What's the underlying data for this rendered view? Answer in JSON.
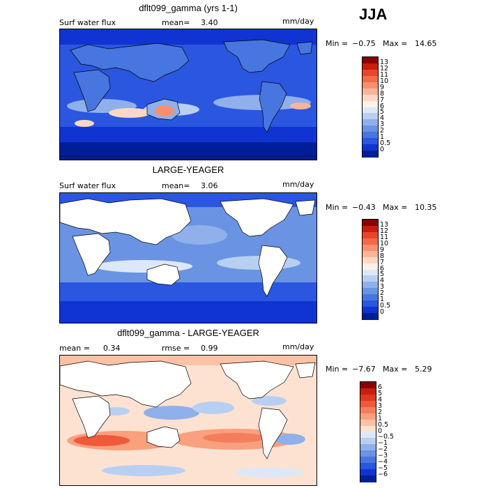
{
  "season": "JJA",
  "panels": [
    {
      "title": "dflt099_gamma (yrs 1-1)",
      "left_label": "Surf water flux",
      "mid_label": "mean=",
      "mid_value": "3.40",
      "units": "mm/day",
      "min_label": "Min =",
      "min_value": "−0.75",
      "max_label": "Max =",
      "max_value": "14.65",
      "map_fill": "ocean_and_land",
      "colorbar": {
        "labels": [
          "13",
          "12",
          "11",
          "10",
          "9",
          "8",
          "7",
          "6",
          "5",
          "4",
          "3",
          "2",
          "1",
          "0.5",
          "0"
        ],
        "colors": [
          "#8b0000",
          "#c81e10",
          "#e8462a",
          "#f26a4a",
          "#f89070",
          "#fbb596",
          "#fcd8c4",
          "#fff1e8",
          "#dce8f8",
          "#b8cff2",
          "#8fb0ea",
          "#6a93e4",
          "#4776e0",
          "#2a56e0",
          "#1034d2",
          "#001e96"
        ]
      }
    },
    {
      "title": "LARGE-YEAGER",
      "left_label": "Surf water flux",
      "mid_label": "mean=",
      "mid_value": "3.06",
      "units": "mm/day",
      "min_label": "Min =",
      "min_value": "−0.43",
      "max_label": "Max =",
      "max_value": "10.35",
      "map_fill": "ocean_only",
      "colorbar": {
        "labels": [
          "13",
          "12",
          "11",
          "10",
          "9",
          "8",
          "7",
          "6",
          "5",
          "4",
          "3",
          "2",
          "1",
          "0.5",
          "0"
        ],
        "colors": [
          "#8b0000",
          "#c81e10",
          "#e8462a",
          "#f26a4a",
          "#f89070",
          "#fbb596",
          "#fcd8c4",
          "#fff1e8",
          "#dce8f8",
          "#b8cff2",
          "#8fb0ea",
          "#6a93e4",
          "#4776e0",
          "#2a56e0",
          "#1034d2",
          "#001e96"
        ]
      }
    },
    {
      "title": "dflt099_gamma - LARGE-YEAGER",
      "left_label": "mean =",
      "left_value": "0.34",
      "mid_label": "rmse =",
      "mid_value": "0.99",
      "units": "mm/day",
      "min_label": "Min =",
      "min_value": "−7.67",
      "max_label": "Max =",
      "max_value": "5.29",
      "map_fill": "difference",
      "colorbar": {
        "labels": [
          "6",
          "5",
          "4",
          "3",
          "2",
          "1",
          "0.5",
          "0",
          "−0.5",
          "−1",
          "−2",
          "−3",
          "−4",
          "−5",
          "−6"
        ],
        "colors": [
          "#8b0000",
          "#c81e10",
          "#e0381e",
          "#ee5a3a",
          "#f47e5c",
          "#f9a07e",
          "#fcc2a6",
          "#fde2d2",
          "#dce8f8",
          "#b8cff2",
          "#8fb0ea",
          "#6a93e4",
          "#4776e0",
          "#2a56e0",
          "#1034d2",
          "#001e96"
        ]
      }
    }
  ]
}
